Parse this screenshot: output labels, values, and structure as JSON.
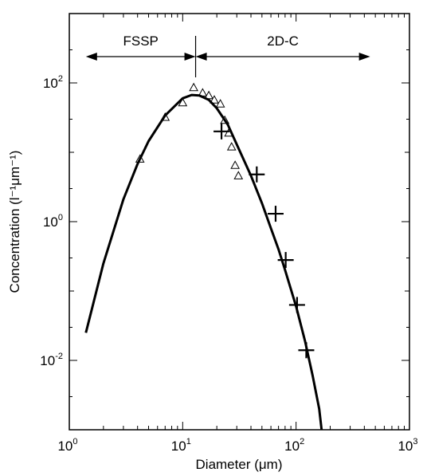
{
  "chart_data": {
    "type": "scatter",
    "xscale": "log",
    "yscale": "log",
    "xlim": [
      1,
      1000
    ],
    "ylim": [
      0.001,
      1000
    ],
    "grid": false,
    "xlabel": "Diameter (μm)",
    "ylabel": "Concentration (l⁻¹μm⁻¹)",
    "x_ticks": [
      {
        "base": "10",
        "exp": "0"
      },
      {
        "base": "10",
        "exp": "1"
      },
      {
        "base": "10",
        "exp": "2"
      },
      {
        "base": "10",
        "exp": "3"
      }
    ],
    "y_ticks": [
      {
        "base": "10",
        "exp": "2",
        "value": 100
      },
      {
        "base": "10",
        "exp": "0",
        "value": 1
      },
      {
        "base": "10",
        "exp": "-2",
        "value": 0.01
      }
    ],
    "ranges": [
      {
        "label": "FSSP",
        "x_from": 1.4,
        "x_to": 13
      },
      {
        "label": "2D-C",
        "x_from": 13,
        "x_to": 450
      }
    ],
    "range_divider_x": 13,
    "series": [
      {
        "marker": "triangle",
        "points": [
          {
            "x": 4.2,
            "y": 8.0
          },
          {
            "x": 7.0,
            "y": 32
          },
          {
            "x": 10,
            "y": 52
          },
          {
            "x": 12.5,
            "y": 86
          },
          {
            "x": 15,
            "y": 72
          },
          {
            "x": 17,
            "y": 66
          },
          {
            "x": 19,
            "y": 57
          },
          {
            "x": 21.5,
            "y": 50
          },
          {
            "x": 23.5,
            "y": 29
          },
          {
            "x": 25.5,
            "y": 19
          },
          {
            "x": 27,
            "y": 12
          },
          {
            "x": 29,
            "y": 6.5
          },
          {
            "x": 31,
            "y": 4.6
          }
        ]
      },
      {
        "marker": "cross",
        "points": [
          {
            "x": 22,
            "y": 20
          },
          {
            "x": 45,
            "y": 4.8
          },
          {
            "x": 66,
            "y": 1.3
          },
          {
            "x": 81,
            "y": 0.28
          },
          {
            "x": 102,
            "y": 0.063
          },
          {
            "x": 123,
            "y": 0.014
          }
        ]
      },
      {
        "marker": "line",
        "points": [
          {
            "x": 1.4,
            "y": 0.025
          },
          {
            "x": 2.0,
            "y": 0.25
          },
          {
            "x": 3.0,
            "y": 2.1
          },
          {
            "x": 4.0,
            "y": 6.8
          },
          {
            "x": 5.0,
            "y": 14.5
          },
          {
            "x": 7.0,
            "y": 34
          },
          {
            "x": 10,
            "y": 60
          },
          {
            "x": 12,
            "y": 67
          },
          {
            "x": 14,
            "y": 66
          },
          {
            "x": 17,
            "y": 57
          },
          {
            "x": 20,
            "y": 43
          },
          {
            "x": 25,
            "y": 25
          },
          {
            "x": 30,
            "y": 13
          },
          {
            "x": 40,
            "y": 4.6
          },
          {
            "x": 50,
            "y": 1.85
          },
          {
            "x": 60,
            "y": 0.8
          },
          {
            "x": 70,
            "y": 0.4
          },
          {
            "x": 80,
            "y": 0.2
          },
          {
            "x": 100,
            "y": 0.06
          },
          {
            "x": 120,
            "y": 0.019
          },
          {
            "x": 140,
            "y": 0.006
          },
          {
            "x": 160,
            "y": 0.002
          },
          {
            "x": 168,
            "y": 0.001
          }
        ]
      }
    ]
  }
}
